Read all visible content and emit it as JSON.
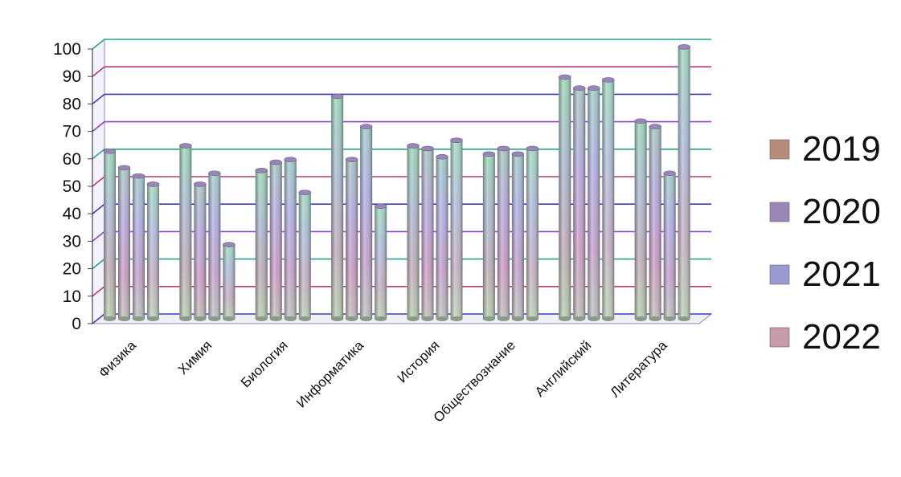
{
  "chart_data": {
    "type": "bar",
    "title": "",
    "xlabel": "",
    "ylabel": "",
    "ylim": [
      0,
      100
    ],
    "yticks": [
      0,
      10,
      20,
      30,
      40,
      50,
      60,
      70,
      80,
      90,
      100
    ],
    "grid": true,
    "three_d": true,
    "legend_position": "right",
    "categories": [
      "Физика",
      "Химия",
      "Биология",
      "Информатика",
      "История",
      "Обществознание",
      "Английский",
      "Литература"
    ],
    "series": [
      {
        "name": "2019",
        "values": [
          61,
          63,
          54,
          81,
          63,
          60,
          88,
          72
        ]
      },
      {
        "name": "2020",
        "values": [
          55,
          49,
          57,
          58,
          62,
          62,
          84,
          70
        ]
      },
      {
        "name": "2021",
        "values": [
          52,
          53,
          58,
          70,
          59,
          60,
          84,
          53
        ]
      },
      {
        "name": "2022",
        "values": [
          49,
          27,
          46,
          41,
          65,
          62,
          87,
          99
        ]
      }
    ],
    "colors": {
      "series_tints": [
        "#a8d8b8",
        "#c8a8d8",
        "#b8b8e8",
        "#b8e0d0"
      ],
      "grid_lines": [
        "#3c3cb4",
        "#b43c78",
        "#2ca088",
        "#8c46c8"
      ],
      "legend_swatches": [
        "#b88a7a",
        "#9a86b6",
        "#9a9ad0",
        "#c89aa8"
      ]
    }
  }
}
